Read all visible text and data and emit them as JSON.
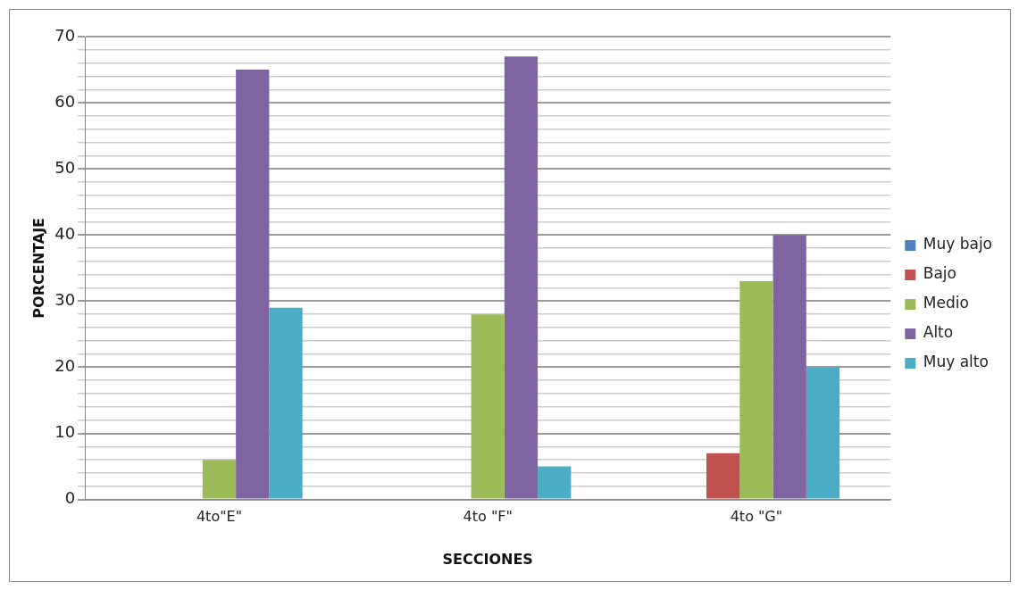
{
  "chart_data": {
    "type": "bar",
    "xlabel": "SECCIONES",
    "ylabel": "PORCENTAJE",
    "categories": [
      "4to\"E\"",
      "4to \"F\"",
      "4to \"G\""
    ],
    "series": [
      {
        "name": "Muy bajo",
        "color": "#4f81bd",
        "values": [
          0,
          0,
          0
        ]
      },
      {
        "name": "Bajo",
        "color": "#c0504d",
        "values": [
          0,
          0,
          7
        ]
      },
      {
        "name": "Medio",
        "color": "#9bbb59",
        "values": [
          6,
          28,
          33
        ]
      },
      {
        "name": "Alto",
        "color": "#8064a2",
        "values": [
          65,
          67,
          40
        ]
      },
      {
        "name": "Muy alto",
        "color": "#4bacc6",
        "values": [
          29,
          5,
          20
        ]
      }
    ],
    "ylim": [
      0,
      70
    ],
    "yticks": [
      0,
      {
        "value": 2,
        "label": null
      },
      {
        "value": 4,
        "label": null
      },
      {
        "value": 6,
        "label": null
      },
      {
        "value": 8,
        "label": null
      },
      10,
      {
        "value": 12,
        "label": null
      },
      {
        "value": 14,
        "label": null
      },
      {
        "value": 16,
        "label": null
      },
      {
        "value": 18,
        "label": null
      },
      20,
      {
        "value": 22,
        "label": null
      },
      {
        "value": 24,
        "label": null
      },
      {
        "value": 26,
        "label": null
      },
      {
        "value": 28,
        "label": null
      },
      30,
      {
        "value": 32,
        "label": null
      },
      {
        "value": 34,
        "label": null
      },
      {
        "value": 36,
        "label": null
      },
      {
        "value": 38,
        "label": null
      },
      40,
      {
        "value": 42,
        "label": null
      },
      {
        "value": 44,
        "label": null
      },
      {
        "value": 46,
        "label": null
      },
      {
        "value": 48,
        "label": null
      },
      50,
      {
        "value": 52,
        "label": null
      },
      {
        "value": 54,
        "label": null
      },
      {
        "value": 56,
        "label": null
      },
      {
        "value": 58,
        "label": null
      },
      60,
      {
        "value": 62,
        "label": null
      },
      {
        "value": 64,
        "label": null
      },
      {
        "value": 66,
        "label": null
      },
      {
        "value": 68,
        "label": null
      },
      70
    ],
    "grid": "y",
    "legend": "right"
  }
}
